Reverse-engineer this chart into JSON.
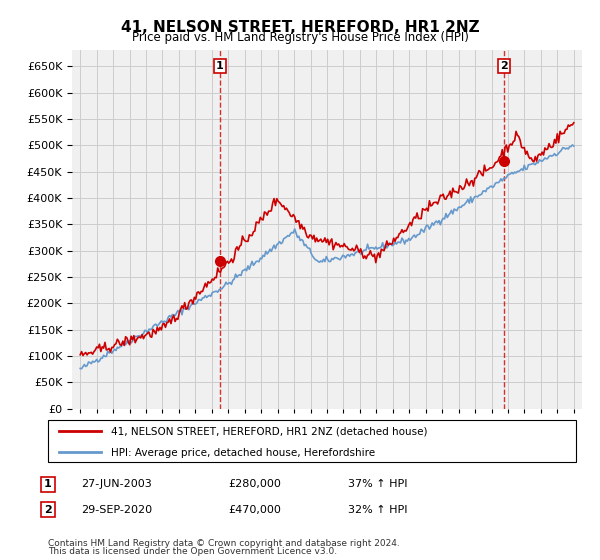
{
  "title": "41, NELSON STREET, HEREFORD, HR1 2NZ",
  "subtitle": "Price paid vs. HM Land Registry's House Price Index (HPI)",
  "legend_line1": "41, NELSON STREET, HEREFORD, HR1 2NZ (detached house)",
  "legend_line2": "HPI: Average price, detached house, Herefordshire",
  "transactions": [
    {
      "num": 1,
      "date": "27-JUN-2003",
      "price": 280000,
      "pct": "37% ↑ HPI",
      "x_year": 2003.49
    },
    {
      "num": 2,
      "date": "29-SEP-2020",
      "price": 470000,
      "pct": "32% ↑ HPI",
      "x_year": 2020.74
    }
  ],
  "footer_line1": "Contains HM Land Registry data © Crown copyright and database right 2024.",
  "footer_line2": "This data is licensed under the Open Government Licence v3.0.",
  "hpi_color": "#6699cc",
  "price_color": "#cc0000",
  "background_color": "#ffffff",
  "grid_color": "#cccccc",
  "ylim": [
    0,
    680000
  ],
  "xlim_start": 1994.5,
  "xlim_end": 2025.5
}
